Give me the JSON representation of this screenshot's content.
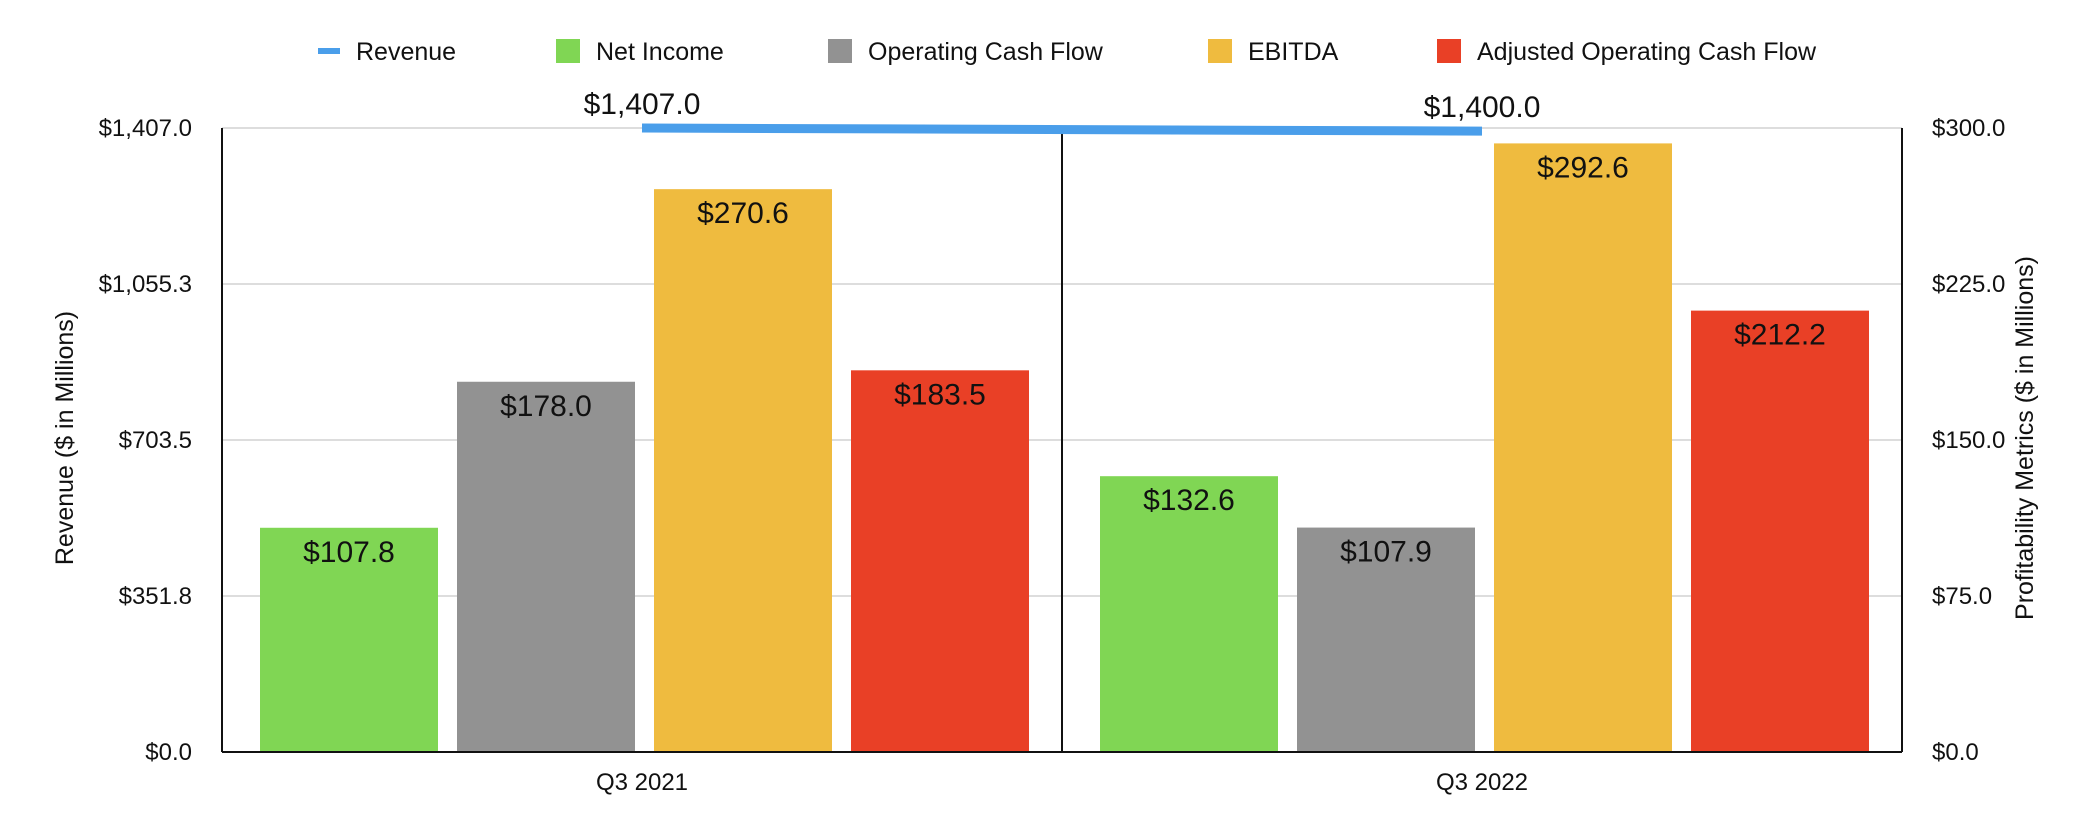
{
  "chart_data": {
    "type": "bar",
    "categories": [
      "Q3 2021",
      "Q3 2022"
    ],
    "line_series": {
      "name": "Revenue",
      "values": [
        1407.0,
        1400.0
      ],
      "labels": [
        "$1,407.0",
        "$1,400.0"
      ],
      "color": "#4a9eea",
      "axis": "left"
    },
    "series": [
      {
        "name": "Net Income",
        "values": [
          107.8,
          132.6
        ],
        "labels": [
          "$107.8",
          "$132.6"
        ],
        "color": "#80d654"
      },
      {
        "name": "Operating Cash Flow",
        "values": [
          178.0,
          107.9
        ],
        "labels": [
          "$178.0",
          "$107.9"
        ],
        "color": "#929292"
      },
      {
        "name": "EBITDA",
        "values": [
          270.6,
          292.6
        ],
        "labels": [
          "$270.6",
          "$292.6"
        ],
        "color": "#efbb3f"
      },
      {
        "name": "Adjusted Operating Cash Flow",
        "values": [
          183.5,
          212.2
        ],
        "labels": [
          "$183.5",
          "$212.2"
        ],
        "color": "#e94026"
      }
    ],
    "y_left": {
      "label": "Revenue ($ in Millions)",
      "ylim": [
        0,
        1407.0
      ],
      "ticks": [
        0,
        351.75,
        703.5,
        1055.25,
        1407.0
      ],
      "tick_labels": [
        "$0.0",
        "$351.8",
        "$703.5",
        "$1,055.3",
        "$1,407.0"
      ]
    },
    "y_right": {
      "label": "Profitability Metrics ($ in Millions)",
      "ylim": [
        0,
        300
      ],
      "ticks": [
        0,
        75,
        150,
        225,
        300
      ],
      "tick_labels": [
        "$0.0",
        "$75.0",
        "$150.0",
        "$225.0",
        "$300.0"
      ]
    },
    "legend": {
      "placement": "top",
      "entries": [
        "Revenue",
        "Net Income",
        "Operating Cash Flow",
        "EBITDA",
        "Adjusted Operating Cash Flow"
      ]
    },
    "grid": true
  }
}
